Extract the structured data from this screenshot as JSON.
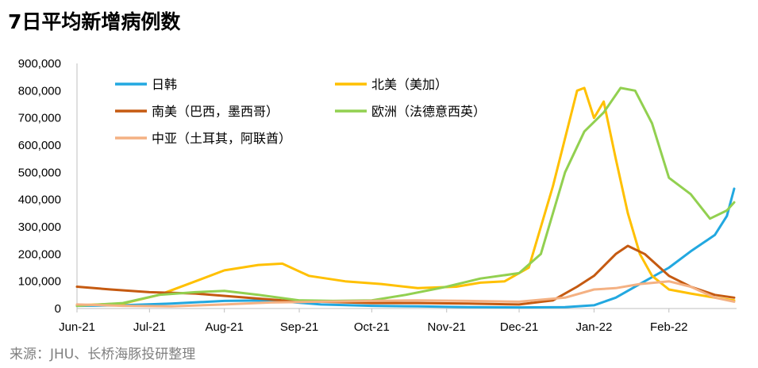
{
  "title": "7日平均新增病例数",
  "source": "来源：JHU、长桥海豚投研整理",
  "chart_data": {
    "type": "line",
    "title": "7日平均新增病例数",
    "xlabel": "",
    "ylabel": "",
    "ylim": [
      0,
      900000
    ],
    "yticks": [
      0,
      100000,
      200000,
      300000,
      400000,
      500000,
      600000,
      700000,
      800000,
      900000
    ],
    "ytick_labels": [
      "0",
      "100,000",
      "200,000",
      "300,000",
      "400,000",
      "500,000",
      "600,000",
      "700,000",
      "800,000",
      "900,000"
    ],
    "xlim": [
      "2021-06-01",
      "2022-03-01"
    ],
    "xticks": [
      "2021-06-01",
      "2021-07-01",
      "2021-08-01",
      "2021-09-01",
      "2021-10-01",
      "2021-11-01",
      "2021-12-01",
      "2022-01-01",
      "2022-02-01"
    ],
    "xtick_labels": [
      "Jun-21",
      "Jul-21",
      "Aug-21",
      "Sep-21",
      "Oct-21",
      "Nov-21",
      "Dec-21",
      "Jan-22",
      "Feb-22"
    ],
    "grid": false,
    "legend_position": "top",
    "series": [
      {
        "name": "日韩",
        "color": "#22a8e0",
        "x": [
          "2021-06-01",
          "2021-06-20",
          "2021-07-10",
          "2021-08-01",
          "2021-08-20",
          "2021-09-10",
          "2021-10-01",
          "2021-10-20",
          "2021-11-10",
          "2021-12-01",
          "2021-12-20",
          "2022-01-01",
          "2022-01-10",
          "2022-01-20",
          "2022-02-01",
          "2022-02-10",
          "2022-02-20",
          "2022-02-25",
          "2022-02-28"
        ],
        "values": [
          10000,
          12000,
          18000,
          28000,
          30000,
          15000,
          10000,
          8000,
          5000,
          4000,
          5000,
          12000,
          40000,
          90000,
          150000,
          210000,
          270000,
          340000,
          440000
        ]
      },
      {
        "name": "北美（美加）",
        "color": "#ffc000",
        "x": [
          "2021-06-01",
          "2021-06-20",
          "2021-07-05",
          "2021-07-20",
          "2021-08-01",
          "2021-08-15",
          "2021-08-25",
          "2021-09-05",
          "2021-09-20",
          "2021-10-05",
          "2021-10-20",
          "2021-11-05",
          "2021-11-15",
          "2021-11-25",
          "2021-12-05",
          "2021-12-15",
          "2021-12-25",
          "2021-12-28",
          "2022-01-01",
          "2022-01-05",
          "2022-01-10",
          "2022-01-15",
          "2022-01-20",
          "2022-01-25",
          "2022-02-01",
          "2022-02-10",
          "2022-02-20",
          "2022-02-28"
        ],
        "values": [
          12000,
          18000,
          50000,
          100000,
          140000,
          160000,
          165000,
          120000,
          100000,
          90000,
          75000,
          80000,
          95000,
          100000,
          150000,
          450000,
          800000,
          810000,
          700000,
          760000,
          550000,
          350000,
          200000,
          120000,
          70000,
          55000,
          40000,
          30000
        ]
      },
      {
        "name": "南美（巴西，墨西哥）",
        "color": "#c55a11",
        "x": [
          "2021-06-01",
          "2021-06-15",
          "2021-07-01",
          "2021-07-20",
          "2021-08-10",
          "2021-08-25",
          "2021-09-10",
          "2021-10-01",
          "2021-10-20",
          "2021-11-10",
          "2021-12-01",
          "2021-12-15",
          "2021-12-25",
          "2022-01-01",
          "2022-01-10",
          "2022-01-15",
          "2022-01-22",
          "2022-02-01",
          "2022-02-10",
          "2022-02-20",
          "2022-02-28"
        ],
        "values": [
          80000,
          70000,
          60000,
          55000,
          40000,
          30000,
          25000,
          20000,
          20000,
          18000,
          15000,
          30000,
          80000,
          120000,
          200000,
          230000,
          200000,
          120000,
          80000,
          50000,
          40000
        ]
      },
      {
        "name": "欧洲（法德意西英）",
        "color": "#92d050",
        "x": [
          "2021-06-01",
          "2021-06-20",
          "2021-07-05",
          "2021-07-20",
          "2021-08-01",
          "2021-08-15",
          "2021-09-01",
          "2021-09-15",
          "2021-10-01",
          "2021-10-15",
          "2021-11-01",
          "2021-11-15",
          "2021-12-01",
          "2021-12-10",
          "2021-12-20",
          "2021-12-28",
          "2022-01-05",
          "2022-01-12",
          "2022-01-18",
          "2022-01-25",
          "2022-02-01",
          "2022-02-10",
          "2022-02-18",
          "2022-02-25",
          "2022-02-28"
        ],
        "values": [
          10000,
          20000,
          50000,
          60000,
          65000,
          50000,
          30000,
          28000,
          30000,
          50000,
          80000,
          110000,
          130000,
          200000,
          500000,
          650000,
          720000,
          810000,
          800000,
          680000,
          480000,
          420000,
          330000,
          360000,
          390000
        ]
      },
      {
        "name": "中亚（土耳其，阿联酋）",
        "color": "#f4b183",
        "x": [
          "2021-06-01",
          "2021-06-20",
          "2021-07-10",
          "2021-08-01",
          "2021-08-20",
          "2021-09-10",
          "2021-10-01",
          "2021-10-20",
          "2021-11-10",
          "2021-12-01",
          "2021-12-20",
          "2022-01-01",
          "2022-01-10",
          "2022-01-20",
          "2022-02-01",
          "2022-02-10",
          "2022-02-20",
          "2022-02-28"
        ],
        "values": [
          15000,
          10000,
          8000,
          15000,
          22000,
          25000,
          28000,
          30000,
          28000,
          25000,
          40000,
          70000,
          75000,
          90000,
          100000,
          80000,
          40000,
          25000
        ]
      }
    ]
  }
}
